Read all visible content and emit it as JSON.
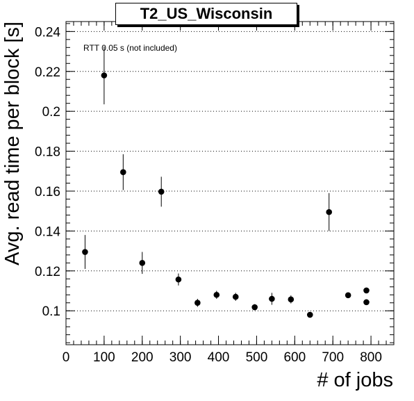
{
  "chart_data": {
    "type": "scatter",
    "title": "T2_US_Wisconsin",
    "xlabel": "# of jobs",
    "ylabel": "Avg. read time per block [s]",
    "annotation": "RTT 0.05 s (not included)",
    "xlim": [
      0,
      860
    ],
    "ylim": [
      0.083,
      0.245
    ],
    "xticks": [
      0,
      100,
      200,
      300,
      400,
      500,
      600,
      700,
      800
    ],
    "yticks": [
      0.1,
      0.12,
      0.14,
      0.16,
      0.18,
      0.2,
      0.22,
      0.24
    ],
    "ytick_labels": [
      "0.1",
      "0.12",
      "0.14",
      "0.16",
      "0.18",
      "0.2",
      "0.22",
      "0.24"
    ],
    "grid": "y-dotted",
    "points": [
      {
        "x": 50,
        "y": 0.1295,
        "err": 0.0085
      },
      {
        "x": 100,
        "y": 0.218,
        "err": 0.0145
      },
      {
        "x": 150,
        "y": 0.1695,
        "err": 0.009
      },
      {
        "x": 200,
        "y": 0.124,
        "err": 0.0055
      },
      {
        "x": 250,
        "y": 0.1597,
        "err": 0.0075
      },
      {
        "x": 295,
        "y": 0.1157,
        "err": 0.003
      },
      {
        "x": 345,
        "y": 0.104,
        "err": 0.002
      },
      {
        "x": 395,
        "y": 0.108,
        "err": 0.002
      },
      {
        "x": 445,
        "y": 0.107,
        "err": 0.002
      },
      {
        "x": 495,
        "y": 0.1018,
        "err": 0.0015
      },
      {
        "x": 540,
        "y": 0.106,
        "err": 0.003
      },
      {
        "x": 590,
        "y": 0.1057,
        "err": 0.002
      },
      {
        "x": 640,
        "y": 0.098,
        "err": 0.001
      },
      {
        "x": 690,
        "y": 0.1495,
        "err": 0.0095
      },
      {
        "x": 740,
        "y": 0.1078,
        "err": 0.0012
      },
      {
        "x": 788,
        "y": 0.1102,
        "err": 0.001
      },
      {
        "x": 788,
        "y": 0.1043,
        "err": 0.001
      }
    ]
  }
}
